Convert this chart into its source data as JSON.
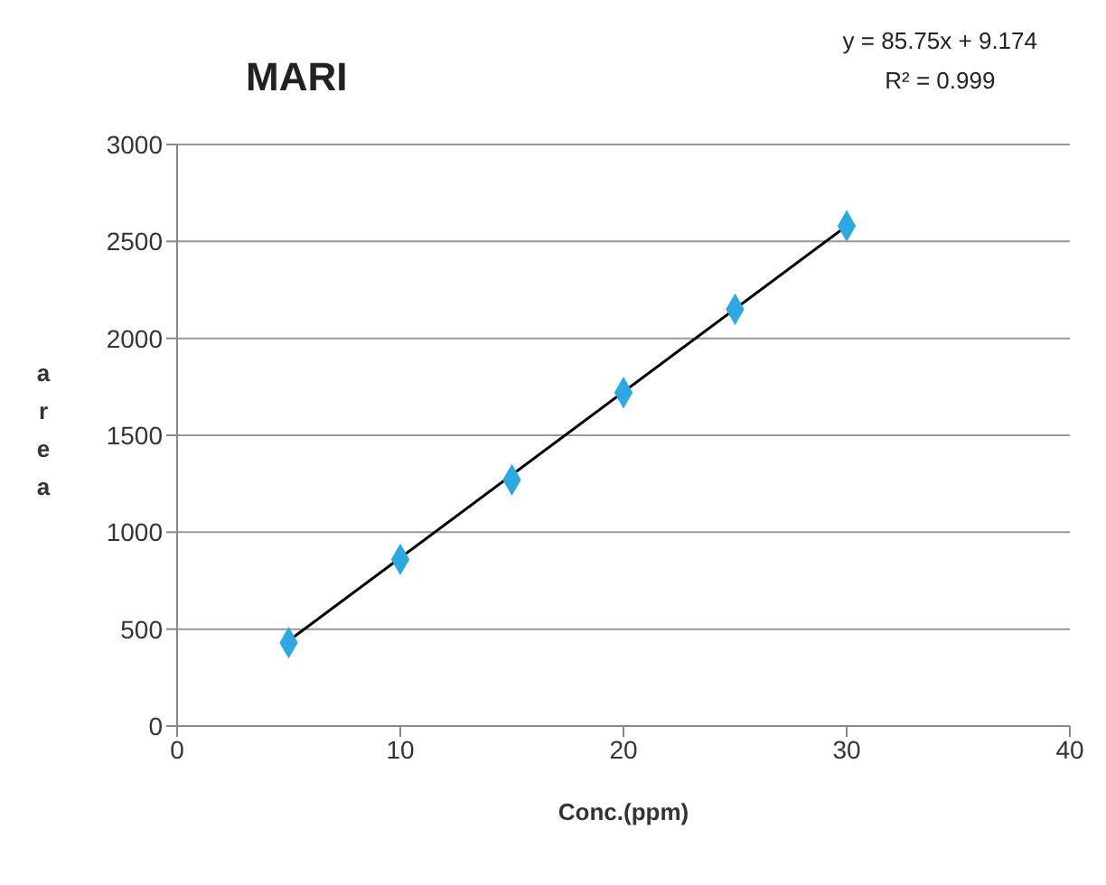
{
  "chart_data": {
    "type": "scatter",
    "title": "MARI",
    "xlabel": "Conc.(ppm)",
    "ylabel": "area",
    "annotations": [
      "y = 85.75x + 9.174",
      "R² = 0.999"
    ],
    "x": [
      5,
      10,
      15,
      20,
      25,
      30
    ],
    "series": [
      {
        "color": "#2ea8e0",
        "values": [
          430,
          860,
          1270,
          1720,
          2150,
          2580
        ],
        "marker": "diamond"
      },
      {
        "type": "line",
        "color": "#000000",
        "x": [
          5,
          30
        ],
        "values": [
          440,
          2580
        ],
        "marker": "none",
        "line_style": "solid"
      }
    ],
    "xlim": [
      0,
      40
    ],
    "xticks": [
      0,
      10,
      20,
      30,
      40
    ],
    "ylim": [
      0,
      3000
    ],
    "yticks": [
      0,
      500,
      1000,
      1500,
      2000,
      2500,
      3000
    ],
    "grid": "y"
  }
}
